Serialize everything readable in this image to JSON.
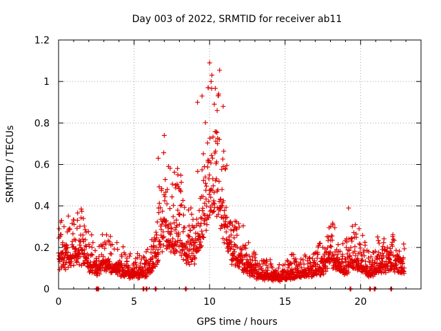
{
  "chart_data": {
    "type": "scatter",
    "title": "Day 003 of 2022, SRMTID for receiver ab11",
    "xlabel": "GPS time / hours",
    "ylabel": "SRMTID / TECUs",
    "xlim": [
      0,
      24
    ],
    "ylim": [
      0,
      1.2
    ],
    "xticks": [
      0,
      5,
      10,
      15,
      20
    ],
    "xtick_labels": [
      "0",
      "5",
      "10",
      "15",
      "20"
    ],
    "yticks": [
      0,
      0.2,
      0.4,
      0.6,
      0.8,
      1.0,
      1.2
    ],
    "ytick_labels": [
      "0",
      "0.2",
      "0.4",
      "0.6",
      "0.8",
      "1",
      "1.2"
    ],
    "grid": true,
    "marker": "+",
    "color": "#e00000",
    "series": [
      {
        "name": "ab11",
        "envelope": [
          {
            "x": 0.0,
            "y": 0.13
          },
          {
            "x": 0.5,
            "y": 0.14
          },
          {
            "x": 1.0,
            "y": 0.16
          },
          {
            "x": 1.5,
            "y": 0.17
          },
          {
            "x": 2.0,
            "y": 0.12
          },
          {
            "x": 2.5,
            "y": 0.09
          },
          {
            "x": 3.0,
            "y": 0.12
          },
          {
            "x": 3.5,
            "y": 0.1
          },
          {
            "x": 4.0,
            "y": 0.09
          },
          {
            "x": 4.5,
            "y": 0.08
          },
          {
            "x": 5.0,
            "y": 0.07
          },
          {
            "x": 5.5,
            "y": 0.07
          },
          {
            "x": 6.0,
            "y": 0.1
          },
          {
            "x": 6.5,
            "y": 0.17
          },
          {
            "x": 7.0,
            "y": 0.3
          },
          {
            "x": 7.5,
            "y": 0.24
          },
          {
            "x": 8.0,
            "y": 0.26
          },
          {
            "x": 8.5,
            "y": 0.16
          },
          {
            "x": 9.0,
            "y": 0.18
          },
          {
            "x": 9.5,
            "y": 0.3
          },
          {
            "x": 10.0,
            "y": 0.48
          },
          {
            "x": 10.5,
            "y": 0.5
          },
          {
            "x": 11.0,
            "y": 0.3
          },
          {
            "x": 11.5,
            "y": 0.16
          },
          {
            "x": 12.0,
            "y": 0.14
          },
          {
            "x": 12.5,
            "y": 0.1
          },
          {
            "x": 13.0,
            "y": 0.07
          },
          {
            "x": 13.5,
            "y": 0.06
          },
          {
            "x": 14.0,
            "y": 0.06
          },
          {
            "x": 14.5,
            "y": 0.05
          },
          {
            "x": 15.0,
            "y": 0.06
          },
          {
            "x": 15.5,
            "y": 0.07
          },
          {
            "x": 16.0,
            "y": 0.07
          },
          {
            "x": 16.5,
            "y": 0.08
          },
          {
            "x": 17.0,
            "y": 0.09
          },
          {
            "x": 17.5,
            "y": 0.1
          },
          {
            "x": 18.0,
            "y": 0.15
          },
          {
            "x": 18.5,
            "y": 0.12
          },
          {
            "x": 19.0,
            "y": 0.1
          },
          {
            "x": 19.5,
            "y": 0.14
          },
          {
            "x": 20.0,
            "y": 0.12
          },
          {
            "x": 20.5,
            "y": 0.08
          },
          {
            "x": 21.0,
            "y": 0.1
          },
          {
            "x": 21.5,
            "y": 0.11
          },
          {
            "x": 22.0,
            "y": 0.12
          },
          {
            "x": 22.5,
            "y": 0.11
          },
          {
            "x": 22.9,
            "y": 0.1
          }
        ],
        "notable_points": [
          {
            "x": 0.2,
            "y": 0.33
          },
          {
            "x": 6.6,
            "y": 0.63
          },
          {
            "x": 7.0,
            "y": 0.74
          },
          {
            "x": 7.9,
            "y": 0.55
          },
          {
            "x": 9.2,
            "y": 0.9
          },
          {
            "x": 9.5,
            "y": 0.93
          },
          {
            "x": 9.9,
            "y": 0.97
          },
          {
            "x": 10.0,
            "y": 1.09
          },
          {
            "x": 10.1,
            "y": 1.0
          },
          {
            "x": 10.5,
            "y": 0.86
          },
          {
            "x": 10.9,
            "y": 0.88
          },
          {
            "x": 19.2,
            "y": 0.39
          },
          {
            "x": 19.9,
            "y": 0.29
          }
        ],
        "zero_points": [
          2.5,
          2.6,
          5.6,
          5.8,
          6.4,
          8.4,
          19.3,
          20.6,
          20.9,
          22.0
        ]
      }
    ]
  }
}
